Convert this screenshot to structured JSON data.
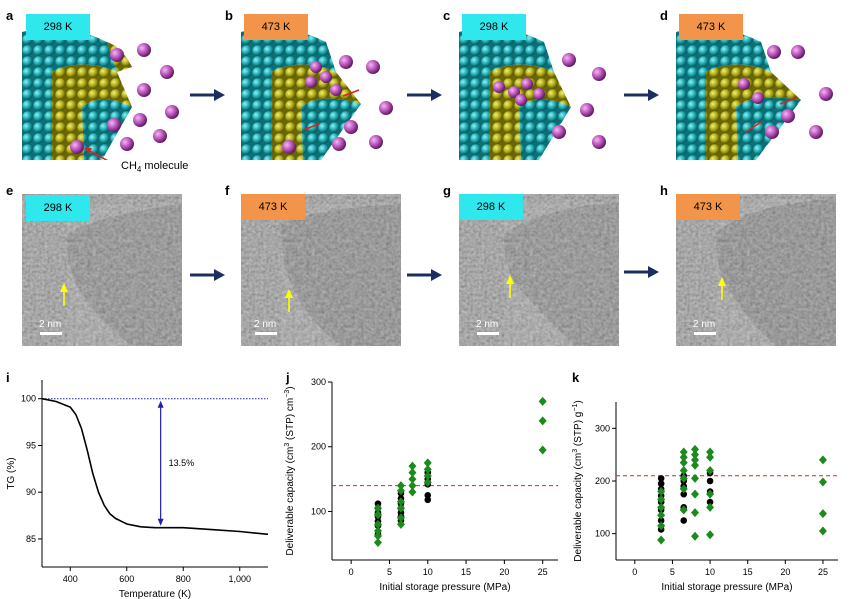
{
  "panels": {
    "a": {
      "label": "a",
      "temp": "298 K"
    },
    "b": {
      "label": "b",
      "temp": "473 K"
    },
    "c": {
      "label": "c",
      "temp": "298 K"
    },
    "d": {
      "label": "d",
      "temp": "473 K"
    },
    "e": {
      "label": "e",
      "temp": "298 K",
      "scale": "2 nm"
    },
    "f": {
      "label": "f",
      "temp": "473 K",
      "scale": "2 nm"
    },
    "g": {
      "label": "g",
      "temp": "298 K",
      "scale": "2 nm"
    },
    "h": {
      "label": "h",
      "temp": "473 K",
      "scale": "2 nm"
    },
    "i": {
      "label": "i"
    },
    "j": {
      "label": "j"
    },
    "k": {
      "label": "k"
    }
  },
  "annotation": {
    "ch4_prefix": "CH",
    "ch4_sub": "4",
    "ch4_suffix": " molecule"
  },
  "colors": {
    "cyan_badge": "#2fe8ee",
    "orange_badge": "#f2954a",
    "arrow": "#1b2f5e",
    "green": "#1c8a1c",
    "red_dash": "#d62728"
  },
  "chart_data": [
    {
      "id": "i",
      "type": "line",
      "title": "",
      "xlabel": "Temperature (K)",
      "ylabel": "TG (%)",
      "xlim": [
        300,
        1100
      ],
      "ylim": [
        82,
        102
      ],
      "xticks": [
        400,
        600,
        800,
        1000
      ],
      "xtick_labels": [
        "400",
        "600",
        "800",
        "1,000"
      ],
      "yticks": [
        85,
        90,
        95,
        100
      ],
      "ytick_labels": [
        "85",
        "90",
        "95",
        "100"
      ],
      "annotation": "13.5%",
      "reference_line": 100,
      "series": [
        {
          "name": "TG",
          "x": [
            300,
            350,
            400,
            420,
            440,
            460,
            480,
            500,
            520,
            540,
            560,
            580,
            600,
            650,
            700,
            750,
            800,
            900,
            1000,
            1100
          ],
          "y": [
            100,
            99.7,
            99.1,
            98.3,
            96.8,
            94.5,
            92.0,
            90.0,
            88.6,
            87.7,
            87.2,
            86.9,
            86.6,
            86.3,
            86.2,
            86.2,
            86.2,
            86.0,
            85.8,
            85.5
          ]
        }
      ]
    },
    {
      "id": "j",
      "type": "scatter",
      "xlabel": "Initial storage pressure (MPa)",
      "ylabel_parts": [
        "Deliverable capacity (cm",
        "3",
        " (STP) cm",
        "−3",
        ")"
      ],
      "xlim": [
        -2.5,
        27
      ],
      "ylim": [
        25,
        300
      ],
      "xticks": [
        0,
        5,
        10,
        15,
        20,
        25
      ],
      "yticks": [
        100,
        200,
        300
      ],
      "reference_line": 140,
      "series": [
        {
          "name": "black",
          "x": [
            3.5,
            3.5,
            3.5,
            3.5,
            3.5,
            3.5,
            3.5,
            6.5,
            6.5,
            6.5,
            6.5,
            6.5,
            6.5,
            6.5,
            10,
            10,
            10,
            10,
            10
          ],
          "y": [
            112,
            105,
            98,
            92,
            85,
            78,
            65,
            128,
            120,
            112,
            105,
            98,
            92,
            86,
            160,
            150,
            142,
            125,
            118
          ]
        },
        {
          "name": "green",
          "x": [
            3.5,
            3.5,
            3.5,
            3.5,
            3.5,
            3.5,
            6.5,
            6.5,
            6.5,
            6.5,
            6.5,
            6.5,
            8,
            8,
            8,
            8,
            8,
            10,
            10,
            10,
            10,
            25,
            25,
            25
          ],
          "y": [
            105,
            95,
            80,
            70,
            62,
            52,
            140,
            132,
            115,
            105,
            90,
            80,
            170,
            160,
            150,
            140,
            130,
            175,
            165,
            155,
            145,
            270,
            240,
            195
          ]
        }
      ]
    },
    {
      "id": "k",
      "type": "scatter",
      "xlabel": "Initial storage pressure (MPa)",
      "ylabel_parts": [
        "Deliverable capacity (cm",
        "3",
        " (STP) g",
        "−1",
        ")"
      ],
      "xlim": [
        -2.5,
        27
      ],
      "ylim": [
        50,
        350
      ],
      "xticks": [
        0,
        5,
        10,
        15,
        20,
        25
      ],
      "yticks": [
        100,
        200,
        300
      ],
      "reference_line": 210,
      "series": [
        {
          "name": "black",
          "x": [
            3.5,
            3.5,
            3.5,
            3.5,
            3.5,
            3.5,
            3.5,
            3.5,
            6.5,
            6.5,
            6.5,
            6.5,
            6.5,
            6.5,
            10,
            10,
            10,
            10
          ],
          "y": [
            205,
            195,
            185,
            172,
            160,
            145,
            125,
            108,
            210,
            200,
            190,
            175,
            150,
            125,
            215,
            200,
            180,
            160
          ]
        },
        {
          "name": "green",
          "x": [
            3.5,
            3.5,
            3.5,
            3.5,
            3.5,
            3.5,
            6.5,
            6.5,
            6.5,
            6.5,
            6.5,
            6.5,
            6.5,
            8,
            8,
            8,
            8,
            8,
            8,
            8,
            8,
            10,
            10,
            10,
            10,
            10,
            10,
            25,
            25,
            25,
            25
          ],
          "y": [
            180,
            165,
            150,
            135,
            115,
            88,
            255,
            245,
            235,
            220,
            205,
            185,
            145,
            260,
            250,
            240,
            230,
            205,
            175,
            140,
            95,
            255,
            245,
            220,
            175,
            150,
            98,
            240,
            198,
            138,
            105
          ]
        }
      ]
    }
  ]
}
